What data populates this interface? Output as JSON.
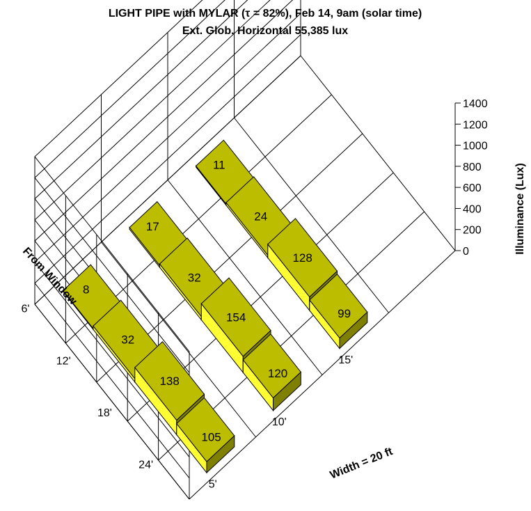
{
  "chart_data": {
    "type": "3d-ribbon",
    "title": "LIGHT PIPE with MYLAR (τ = 82%), Feb 14, 9am (solar time)",
    "subtitle": "Ext. Glob. Horizontal 55,385 lux",
    "xlabel": "Width = 20 ft",
    "ylabel": "From Window",
    "zlabel": "Illuminance (Lux)",
    "x_ticks": [
      "5'",
      "10'",
      "15'"
    ],
    "y_ticks": [
      "6'",
      "12'",
      "18'",
      "24'"
    ],
    "z_ticks": [
      "0",
      "200",
      "400",
      "600",
      "800",
      "1000",
      "1200",
      "1400"
    ],
    "zlim": [
      0,
      1400
    ],
    "series": [
      {
        "x": "5'",
        "values": [
          8,
          32,
          138,
          105
        ]
      },
      {
        "x": "10'",
        "values": [
          17,
          32,
          154,
          120
        ]
      },
      {
        "x": "15'",
        "values": [
          11,
          24,
          128,
          99
        ]
      }
    ],
    "colors": {
      "top": "#bdbd00",
      "side": "#ffff33",
      "front": "#808000",
      "grid": "#000000"
    }
  }
}
